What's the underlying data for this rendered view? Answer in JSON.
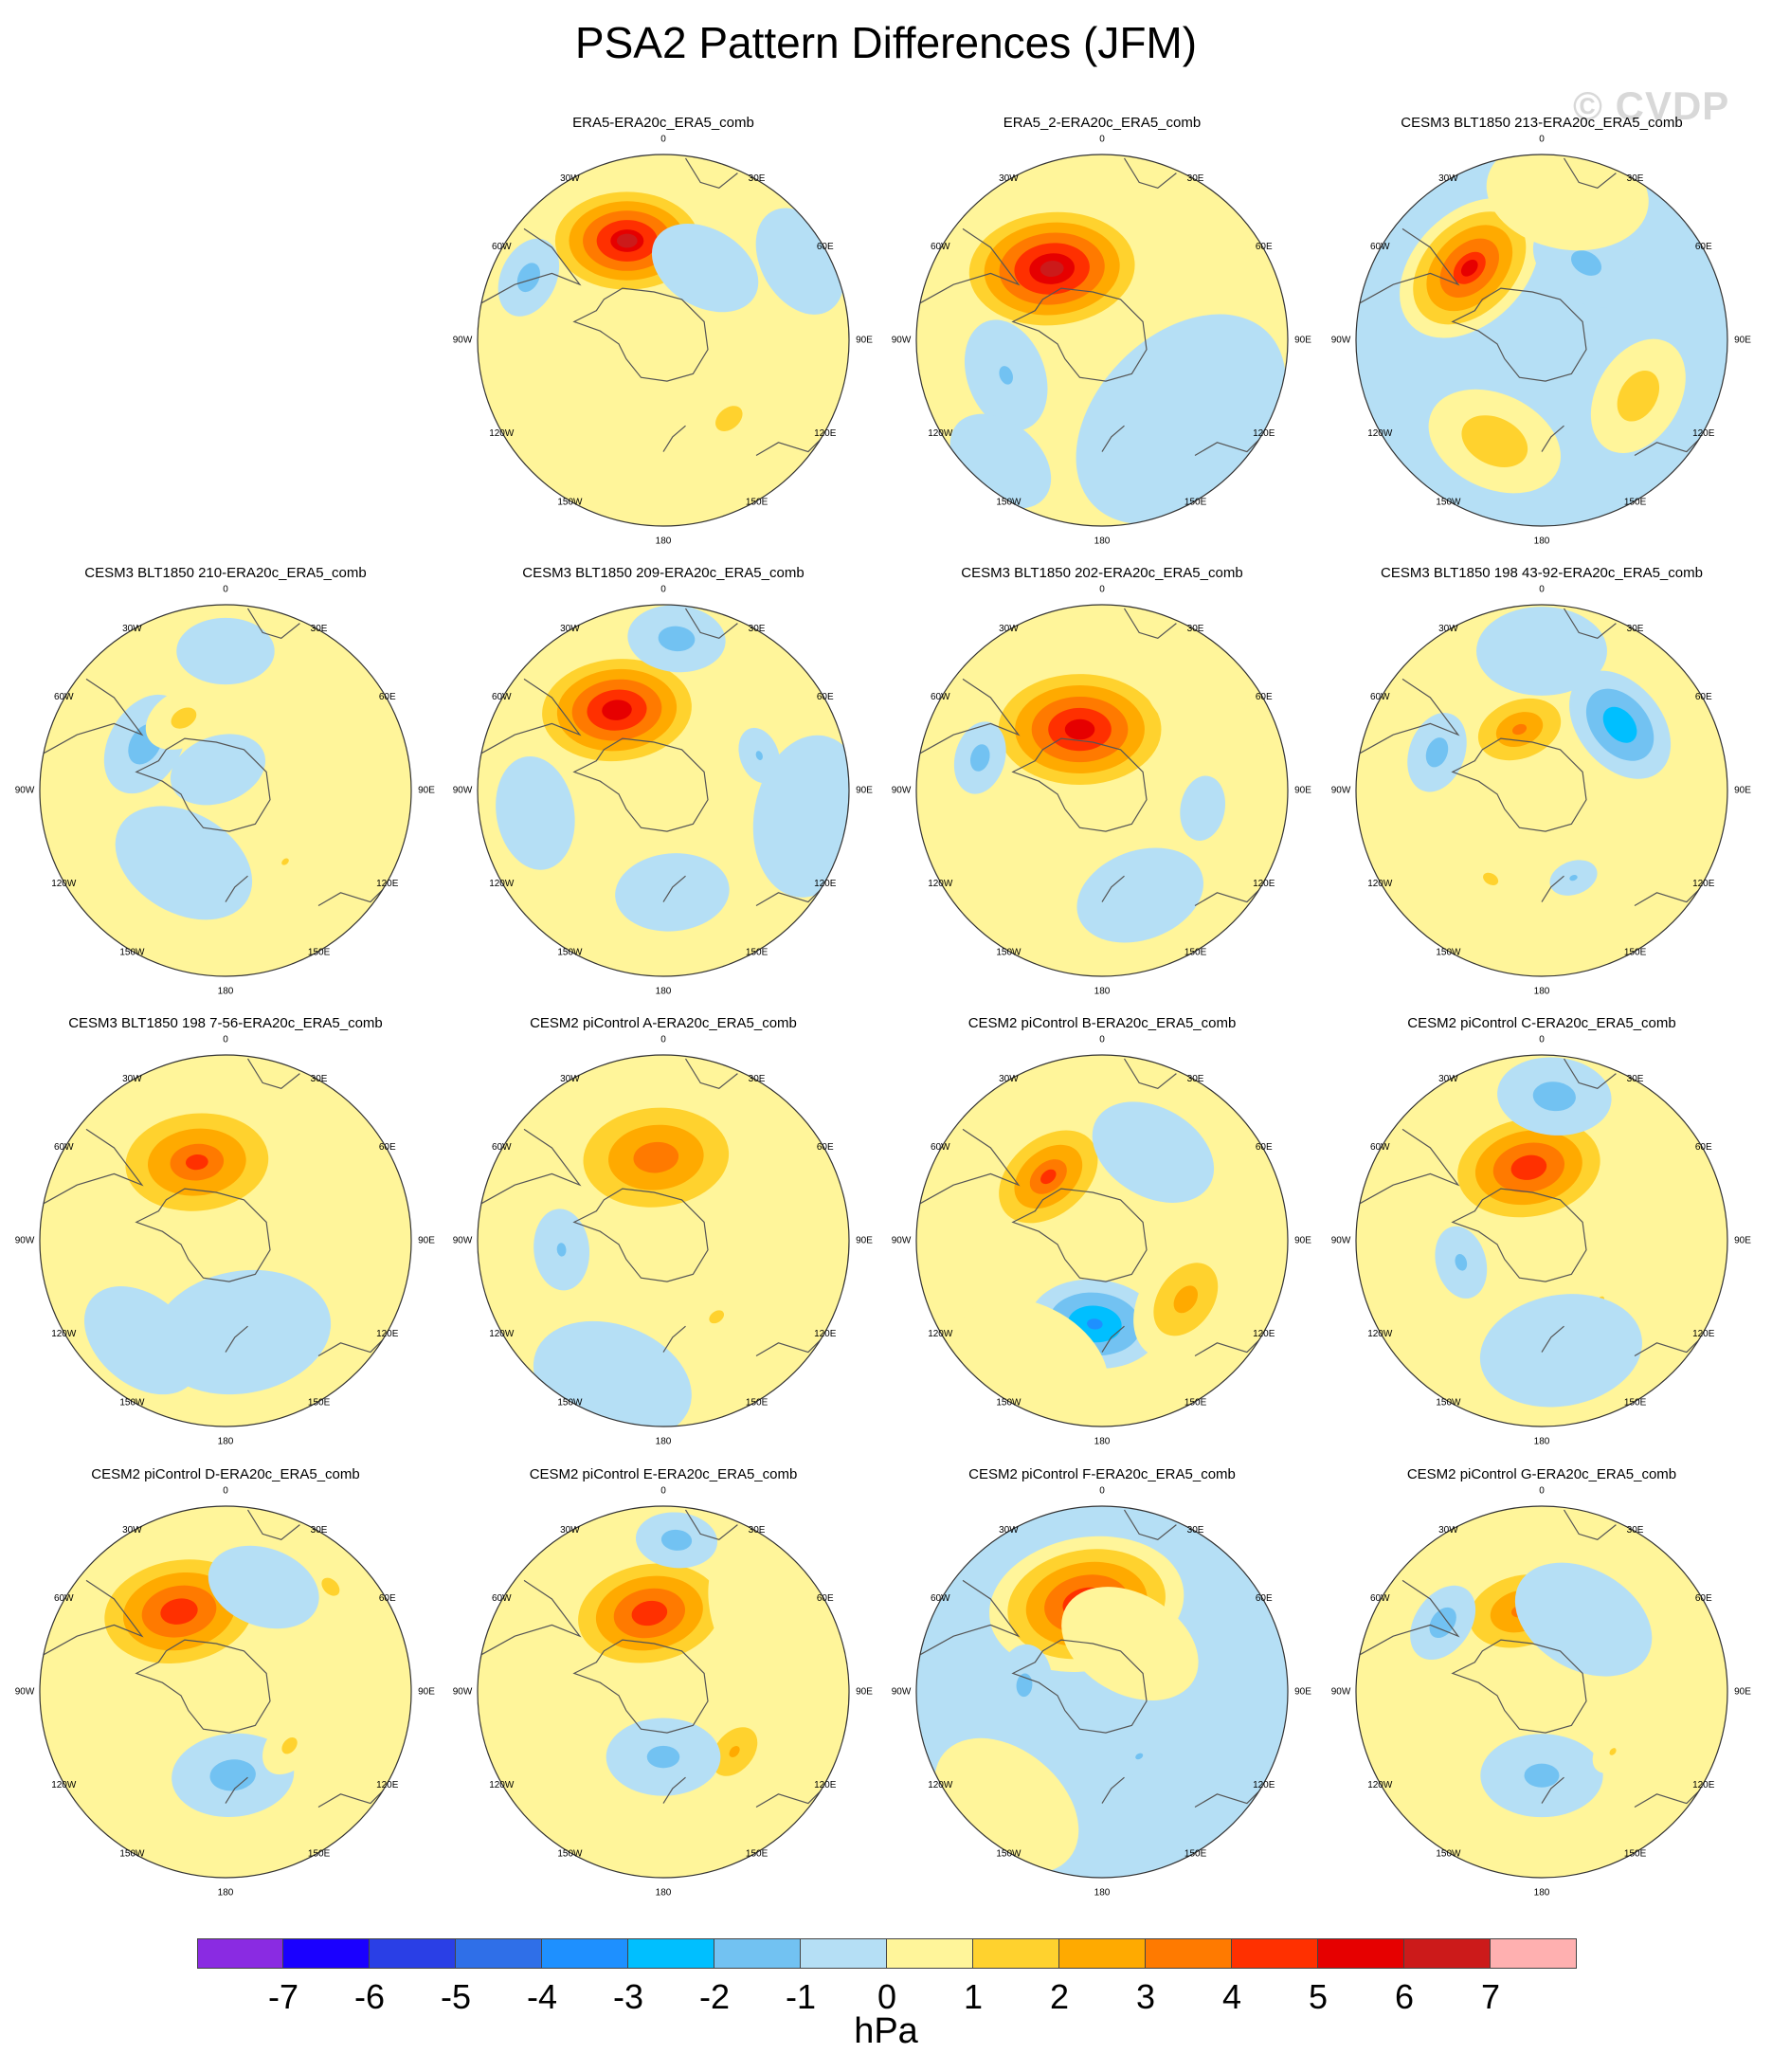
{
  "title": "PSA2 Pattern Differences (JFM)",
  "watermark": "© CVDP",
  "units": "hPa",
  "lon_labels": [
    "0",
    "30E",
    "60E",
    "90E",
    "120E",
    "150E",
    "180",
    "150W",
    "120W",
    "90W",
    "60W",
    "30W"
  ],
  "colors": {
    "levels_min": -7,
    "palette": [
      "#8a2be2",
      "#1a00ff",
      "#2a3fe6",
      "#2f6fe8",
      "#1e90ff",
      "#00bfff",
      "#72c2f2",
      "#b5dff5",
      "#fff59a",
      "#ffd22e",
      "#ffaa00",
      "#ff7a00",
      "#ff3000",
      "#e60000",
      "#cc1a1a",
      "#ffb0b0"
    ],
    "coast": "#555555"
  },
  "chart_data": {
    "type": "heatmap",
    "projection": "south-polar-stereographic",
    "colorbar": {
      "ticks": [
        "-7",
        "-6",
        "-5",
        "-4",
        "-3",
        "-2",
        "-1",
        "0",
        "1",
        "2",
        "3",
        "4",
        "5",
        "6",
        "7"
      ],
      "units": "hPa"
    },
    "panels": [
      {
        "title": "ERA5-ERA20c_ERA5_comb",
        "background": 0.2,
        "blobs": [
          {
            "lon": 200,
            "r": 0.57,
            "w": 0.21,
            "v": 6.2,
            "ang": 20
          },
          {
            "lon": 40,
            "r": 0.55,
            "w": 0.1,
            "v": 1.6
          },
          {
            "lon": 245,
            "r": 0.8,
            "w": 0.1,
            "v": -1.6
          },
          {
            "lon": 120,
            "r": 0.85,
            "w": 0.14,
            "v": -0.6
          },
          {
            "lon": 0,
            "r": 0.7,
            "w": 0.16,
            "v": 0.6
          },
          {
            "lon": 290,
            "r": 0.75,
            "w": 0.12,
            "v": 0.5
          },
          {
            "lon": 150,
            "r": 0.45,
            "w": 0.14,
            "v": -0.7
          }
        ]
      },
      {
        "title": "ERA5_2-ERA20c_ERA5_comb",
        "background": 0.15,
        "blobs": [
          {
            "lon": 215,
            "r": 0.47,
            "w": 0.24,
            "v": 6.5,
            "ang": 30
          },
          {
            "lon": 290,
            "r": 0.55,
            "w": 0.14,
            "v": -1.2
          },
          {
            "lon": 45,
            "r": 0.6,
            "w": 0.3,
            "v": -0.8
          },
          {
            "lon": 140,
            "r": 0.75,
            "w": 0.2,
            "v": 0.6
          },
          {
            "lon": 320,
            "r": 0.85,
            "w": 0.14,
            "v": -0.5
          }
        ]
      },
      {
        "title": "CESM3 BLT1850 213-ERA20c_ERA5_comb",
        "background": -0.15,
        "blobs": [
          {
            "lon": 225,
            "r": 0.55,
            "w": 0.2,
            "v": 5.2
          },
          {
            "lon": 335,
            "r": 0.6,
            "w": 0.17,
            "v": 2.0
          },
          {
            "lon": 60,
            "r": 0.6,
            "w": 0.15,
            "v": 1.8
          },
          {
            "lon": 150,
            "r": 0.48,
            "w": 0.14,
            "v": -1.4
          },
          {
            "lon": 170,
            "r": 0.8,
            "w": 0.2,
            "v": 0.6
          }
        ]
      },
      {
        "title": "CESM3 BLT1850 210-ERA20c_ERA5_comb",
        "background": 0.6,
        "blobs": [
          {
            "lon": 240,
            "r": 0.5,
            "w": 0.13,
            "v": -1.7
          },
          {
            "lon": 210,
            "r": 0.45,
            "w": 0.1,
            "v": 1.5
          },
          {
            "lon": 200,
            "r": 0.12,
            "w": 0.12,
            "v": -0.6
          },
          {
            "lon": 180,
            "r": 0.75,
            "w": 0.12,
            "v": -0.8
          },
          {
            "lon": 40,
            "r": 0.5,
            "w": 0.06,
            "v": 1.2
          },
          {
            "lon": 330,
            "r": 0.45,
            "w": 0.18,
            "v": -0.6
          }
        ]
      },
      {
        "title": "CESM3 BLT1850 209-ERA20c_ERA5_comb",
        "background": 0.2,
        "blobs": [
          {
            "lon": 210,
            "r": 0.5,
            "w": 0.22,
            "v": 6.0,
            "ang": 25
          },
          {
            "lon": 175,
            "r": 0.82,
            "w": 0.12,
            "v": -1.6
          },
          {
            "lon": 5,
            "r": 0.55,
            "w": 0.14,
            "v": -1.0
          },
          {
            "lon": 110,
            "r": 0.55,
            "w": 0.07,
            "v": -1.2
          },
          {
            "lon": 80,
            "r": 0.8,
            "w": 0.2,
            "v": -0.6
          },
          {
            "lon": 280,
            "r": 0.7,
            "w": 0.14,
            "v": -0.6
          }
        ]
      },
      {
        "title": "CESM3 BLT1850 202-ERA20c_ERA5_comb",
        "background": 0.2,
        "blobs": [
          {
            "lon": 200,
            "r": 0.35,
            "w": 0.24,
            "v": 5.9,
            "ang": 20
          },
          {
            "lon": 255,
            "r": 0.68,
            "w": 0.09,
            "v": -1.6
          },
          {
            "lon": 80,
            "r": 0.55,
            "w": 0.08,
            "v": -1.0
          },
          {
            "lon": 20,
            "r": 0.6,
            "w": 0.16,
            "v": -0.6
          },
          {
            "lon": 135,
            "r": 0.8,
            "w": 0.2,
            "v": 0.6
          }
        ]
      },
      {
        "title": "CESM3 BLT1850 198 43-92-ERA20c_ERA5_comb",
        "background": 0.3,
        "blobs": [
          {
            "lon": 200,
            "r": 0.35,
            "w": 0.15,
            "v": 3.3
          },
          {
            "lon": 130,
            "r": 0.55,
            "w": 0.15,
            "v": -3.0
          },
          {
            "lon": 250,
            "r": 0.6,
            "w": 0.1,
            "v": -1.6
          },
          {
            "lon": 330,
            "r": 0.55,
            "w": 0.06,
            "v": 1.5
          },
          {
            "lon": 20,
            "r": 0.5,
            "w": 0.06,
            "v": -1.2
          },
          {
            "lon": 180,
            "r": 0.75,
            "w": 0.16,
            "v": -0.6
          }
        ]
      },
      {
        "title": "CESM3 BLT1850 198 7-56-ERA20c_ERA5_comb",
        "background": 0.15,
        "blobs": [
          {
            "lon": 200,
            "r": 0.45,
            "w": 0.23,
            "v": 4.2,
            "ang": 15
          },
          {
            "lon": 10,
            "r": 0.5,
            "w": 0.22,
            "v": -0.9
          },
          {
            "lon": 320,
            "r": 0.7,
            "w": 0.16,
            "v": -0.6
          },
          {
            "lon": 120,
            "r": 0.75,
            "w": 0.2,
            "v": 0.6
          }
        ]
      },
      {
        "title": "CESM2 piControl A-ERA20c_ERA5_comb",
        "background": 0.3,
        "blobs": [
          {
            "lon": 185,
            "r": 0.45,
            "w": 0.24,
            "v": 3.9
          },
          {
            "lon": 35,
            "r": 0.5,
            "w": 0.07,
            "v": 1.4
          },
          {
            "lon": 275,
            "r": 0.55,
            "w": 0.1,
            "v": -1.2
          },
          {
            "lon": 340,
            "r": 0.8,
            "w": 0.2,
            "v": -0.6
          }
        ]
      },
      {
        "title": "CESM2 piControl B-ERA20c_ERA5_comb",
        "background": 0.1,
        "blobs": [
          {
            "lon": 220,
            "r": 0.45,
            "w": 0.18,
            "v": 4.2
          },
          {
            "lon": 355,
            "r": 0.45,
            "w": 0.16,
            "v": -3.4
          },
          {
            "lon": 55,
            "r": 0.55,
            "w": 0.16,
            "v": 2.6
          },
          {
            "lon": 150,
            "r": 0.55,
            "w": 0.16,
            "v": -0.7
          },
          {
            "lon": 330,
            "r": 0.75,
            "w": 0.2,
            "v": 0.6
          }
        ]
      },
      {
        "title": "CESM2 piControl C-ERA20c_ERA5_comb",
        "background": 0.25,
        "blobs": [
          {
            "lon": 190,
            "r": 0.4,
            "w": 0.22,
            "v": 5.0
          },
          {
            "lon": 175,
            "r": 0.78,
            "w": 0.14,
            "v": -1.6
          },
          {
            "lon": 285,
            "r": 0.45,
            "w": 0.09,
            "v": -1.3
          },
          {
            "lon": 45,
            "r": 0.45,
            "w": 0.06,
            "v": 1.2
          },
          {
            "lon": 10,
            "r": 0.6,
            "w": 0.2,
            "v": -0.6
          }
        ]
      },
      {
        "title": "CESM2 piControl D-ERA20c_ERA5_comb",
        "background": 0.2,
        "blobs": [
          {
            "lon": 210,
            "r": 0.5,
            "w": 0.23,
            "v": 5.0,
            "ang": 20
          },
          {
            "lon": 5,
            "r": 0.45,
            "w": 0.15,
            "v": -1.6
          },
          {
            "lon": 50,
            "r": 0.45,
            "w": 0.08,
            "v": 1.4
          },
          {
            "lon": 135,
            "r": 0.8,
            "w": 0.09,
            "v": 1.4
          },
          {
            "lon": 160,
            "r": 0.6,
            "w": 0.14,
            "v": -0.6
          }
        ]
      },
      {
        "title": "CESM2 piControl E-ERA20c_ERA5_comb",
        "background": 0.1,
        "blobs": [
          {
            "lon": 190,
            "r": 0.43,
            "w": 0.22,
            "v": 5.0
          },
          {
            "lon": 50,
            "r": 0.5,
            "w": 0.12,
            "v": 2.3
          },
          {
            "lon": 0,
            "r": 0.35,
            "w": 0.14,
            "v": -1.4
          },
          {
            "lon": 175,
            "r": 0.82,
            "w": 0.1,
            "v": -1.6
          },
          {
            "lon": 120,
            "r": 0.75,
            "w": 0.24,
            "v": 0.6
          }
        ]
      },
      {
        "title": "CESM2 piControl F-ERA20c_ERA5_comb",
        "background": -0.1,
        "blobs": [
          {
            "lon": 190,
            "r": 0.48,
            "w": 0.24,
            "v": 5.3
          },
          {
            "lon": 265,
            "r": 0.42,
            "w": 0.1,
            "v": -1.4
          },
          {
            "lon": 30,
            "r": 0.4,
            "w": 0.06,
            "v": -1.2
          },
          {
            "lon": 150,
            "r": 0.3,
            "w": 0.18,
            "v": 0.6
          },
          {
            "lon": 320,
            "r": 0.8,
            "w": 0.2,
            "v": 0.6
          }
        ]
      },
      {
        "title": "CESM2 piControl G-ERA20c_ERA5_comb",
        "background": 0.15,
        "blobs": [
          {
            "lon": 195,
            "r": 0.45,
            "w": 0.18,
            "v": 3.4
          },
          {
            "lon": 0,
            "r": 0.45,
            "w": 0.15,
            "v": -1.4
          },
          {
            "lon": 235,
            "r": 0.65,
            "w": 0.1,
            "v": -1.7
          },
          {
            "lon": 50,
            "r": 0.5,
            "w": 0.06,
            "v": 1.2
          },
          {
            "lon": 150,
            "r": 0.45,
            "w": 0.18,
            "v": -0.6
          }
        ]
      }
    ]
  }
}
